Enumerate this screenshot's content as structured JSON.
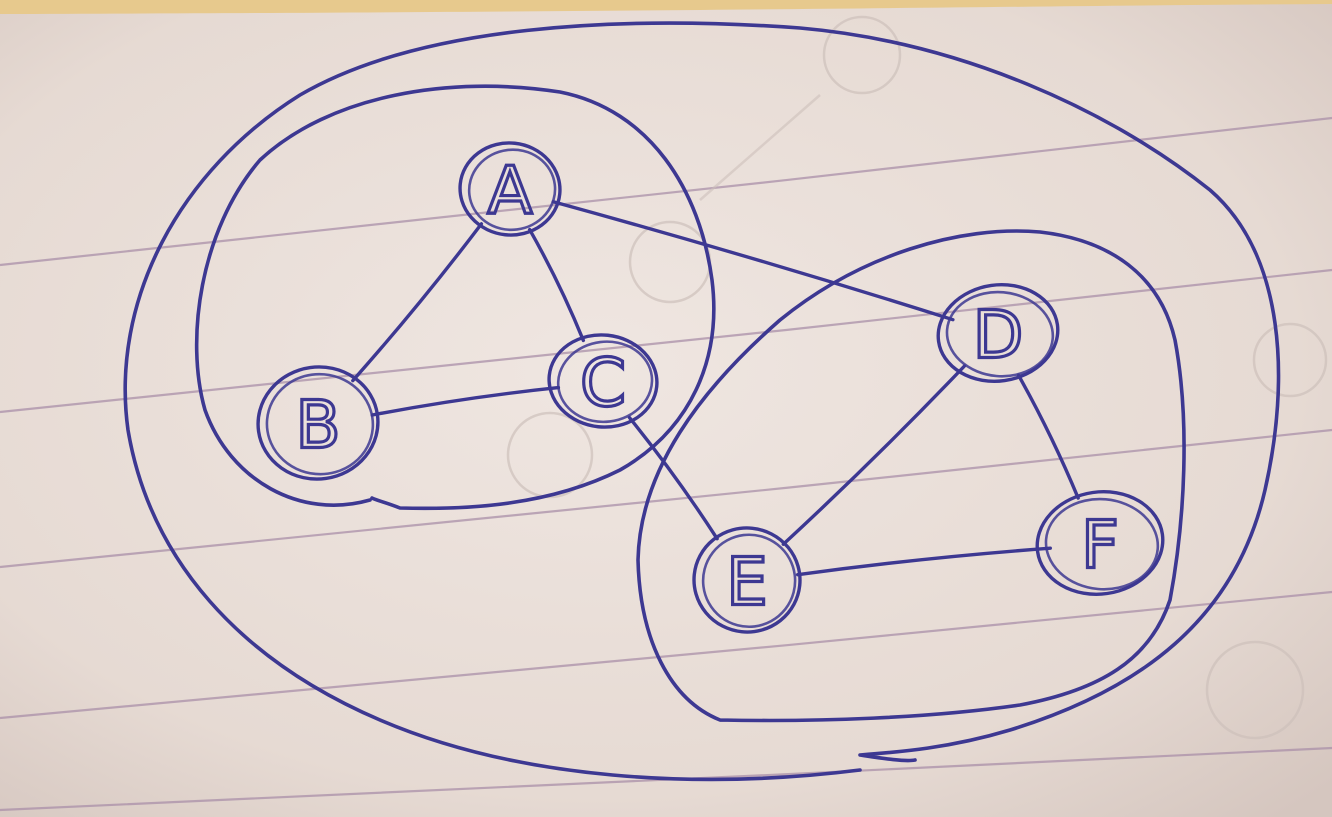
{
  "colors": {
    "paper": "#ece2dd",
    "paper_shadow": "#d9cbc4",
    "rule_line": "#a98fa8",
    "ink": "#3d3892",
    "ghost_pencil": "#cdc0bb",
    "top_strip": "#e7c98d"
  },
  "diagram": {
    "nodes": [
      {
        "id": "A",
        "label": "A"
      },
      {
        "id": "B",
        "label": "B"
      },
      {
        "id": "C",
        "label": "C"
      },
      {
        "id": "D",
        "label": "D"
      },
      {
        "id": "E",
        "label": "E"
      },
      {
        "id": "F",
        "label": "F"
      }
    ],
    "edges": [
      {
        "from": "A",
        "to": "B"
      },
      {
        "from": "A",
        "to": "C"
      },
      {
        "from": "A",
        "to": "D"
      },
      {
        "from": "B",
        "to": "C"
      },
      {
        "from": "C",
        "to": "E"
      },
      {
        "from": "D",
        "to": "E"
      },
      {
        "from": "D",
        "to": "F"
      },
      {
        "from": "E",
        "to": "F"
      }
    ],
    "clusters": [
      {
        "id": "all",
        "members": [
          "A",
          "B",
          "C",
          "D",
          "E",
          "F"
        ]
      },
      {
        "id": "abc",
        "members": [
          "A",
          "B",
          "C"
        ]
      },
      {
        "id": "def",
        "members": [
          "D",
          "E",
          "F"
        ]
      }
    ]
  }
}
